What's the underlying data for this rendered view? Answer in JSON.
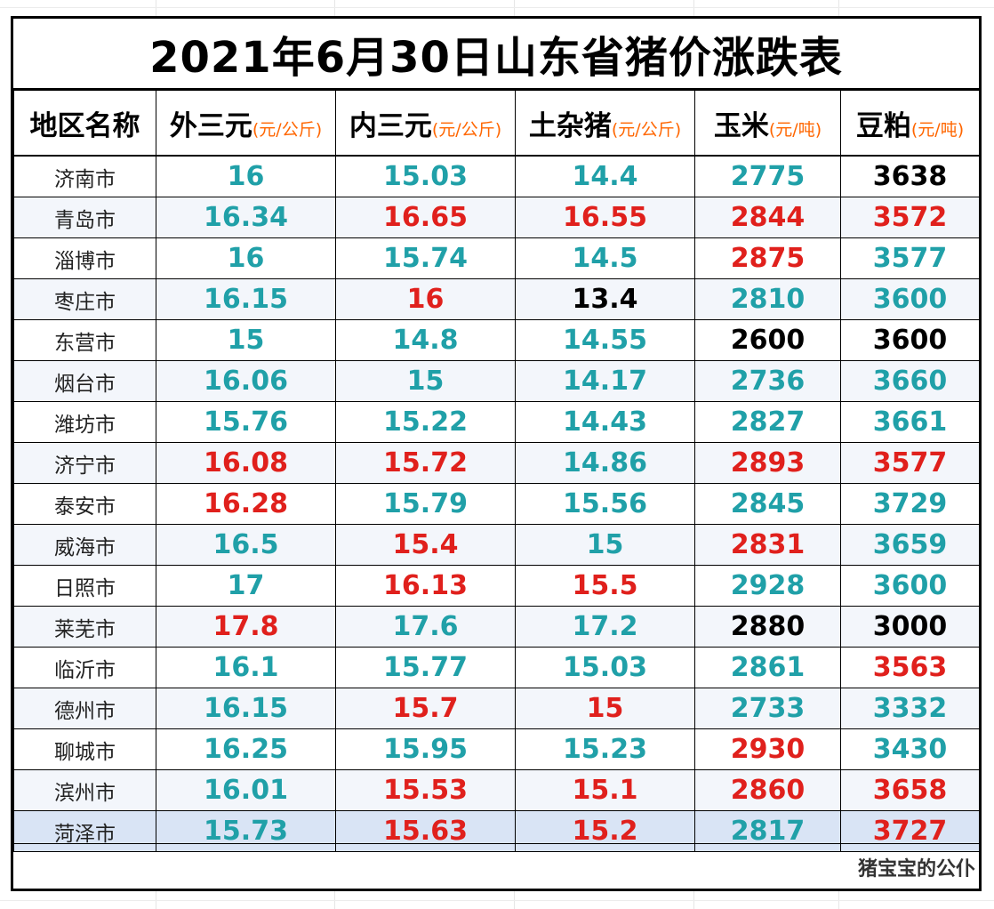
{
  "title": "2021年6月30日山东省猪价涨跌表",
  "watermark": "猪宝宝的公仆",
  "colors": {
    "up": "#e0201c",
    "down": "#20a0a8",
    "flat": "#000000",
    "unit": "#ff6600"
  },
  "headers": [
    {
      "name": "地区名称",
      "unit": ""
    },
    {
      "name": "外三元",
      "unit": "(元/公斤)"
    },
    {
      "name": "内三元",
      "unit": "(元/公斤)"
    },
    {
      "name": "土杂猪",
      "unit": "(元/公斤)"
    },
    {
      "name": "玉米",
      "unit": "(元/吨)"
    },
    {
      "name": "豆粕",
      "unit": "(元/吨)"
    }
  ],
  "rows": [
    {
      "region": "济南市",
      "values": [
        "16",
        "15.03",
        "14.4",
        "2775",
        "3638"
      ],
      "trend": [
        "down",
        "down",
        "down",
        "down",
        "flat"
      ]
    },
    {
      "region": "青岛市",
      "values": [
        "16.34",
        "16.65",
        "16.55",
        "2844",
        "3572"
      ],
      "trend": [
        "down",
        "up",
        "up",
        "up",
        "up"
      ]
    },
    {
      "region": "淄博市",
      "values": [
        "16",
        "15.74",
        "14.5",
        "2875",
        "3577"
      ],
      "trend": [
        "down",
        "down",
        "down",
        "up",
        "down"
      ]
    },
    {
      "region": "枣庄市",
      "values": [
        "16.15",
        "16",
        "13.4",
        "2810",
        "3600"
      ],
      "trend": [
        "down",
        "up",
        "flat",
        "down",
        "down"
      ]
    },
    {
      "region": "东营市",
      "values": [
        "15",
        "14.8",
        "14.55",
        "2600",
        "3600"
      ],
      "trend": [
        "down",
        "down",
        "down",
        "flat",
        "flat"
      ]
    },
    {
      "region": "烟台市",
      "values": [
        "16.06",
        "15",
        "14.17",
        "2736",
        "3660"
      ],
      "trend": [
        "down",
        "down",
        "down",
        "down",
        "down"
      ]
    },
    {
      "region": "潍坊市",
      "values": [
        "15.76",
        "15.22",
        "14.43",
        "2827",
        "3661"
      ],
      "trend": [
        "down",
        "down",
        "down",
        "down",
        "down"
      ]
    },
    {
      "region": "济宁市",
      "values": [
        "16.08",
        "15.72",
        "14.86",
        "2893",
        "3577"
      ],
      "trend": [
        "up",
        "up",
        "down",
        "up",
        "up"
      ]
    },
    {
      "region": "泰安市",
      "values": [
        "16.28",
        "15.79",
        "15.56",
        "2845",
        "3729"
      ],
      "trend": [
        "up",
        "down",
        "down",
        "down",
        "down"
      ]
    },
    {
      "region": "威海市",
      "values": [
        "16.5",
        "15.4",
        "15",
        "2831",
        "3659"
      ],
      "trend": [
        "down",
        "up",
        "down",
        "up",
        "down"
      ]
    },
    {
      "region": "日照市",
      "values": [
        "17",
        "16.13",
        "15.5",
        "2928",
        "3600"
      ],
      "trend": [
        "down",
        "up",
        "up",
        "down",
        "down"
      ]
    },
    {
      "region": "莱芜市",
      "values": [
        "17.8",
        "17.6",
        "17.2",
        "2880",
        "3000"
      ],
      "trend": [
        "up",
        "down",
        "down",
        "flat",
        "flat"
      ]
    },
    {
      "region": "临沂市",
      "values": [
        "16.1",
        "15.77",
        "15.03",
        "2861",
        "3563"
      ],
      "trend": [
        "down",
        "down",
        "down",
        "down",
        "up"
      ]
    },
    {
      "region": "德州市",
      "values": [
        "16.15",
        "15.7",
        "15",
        "2733",
        "3332"
      ],
      "trend": [
        "down",
        "up",
        "up",
        "down",
        "down"
      ]
    },
    {
      "region": "聊城市",
      "values": [
        "16.25",
        "15.95",
        "15.23",
        "2930",
        "3430"
      ],
      "trend": [
        "down",
        "down",
        "down",
        "up",
        "down"
      ]
    },
    {
      "region": "滨州市",
      "values": [
        "16.01",
        "15.53",
        "15.1",
        "2860",
        "3658"
      ],
      "trend": [
        "down",
        "up",
        "up",
        "up",
        "up"
      ]
    },
    {
      "region": "菏泽市",
      "values": [
        "15.73",
        "15.63",
        "15.2",
        "2817",
        "3727"
      ],
      "trend": [
        "down",
        "up",
        "up",
        "down",
        "up"
      ]
    }
  ]
}
